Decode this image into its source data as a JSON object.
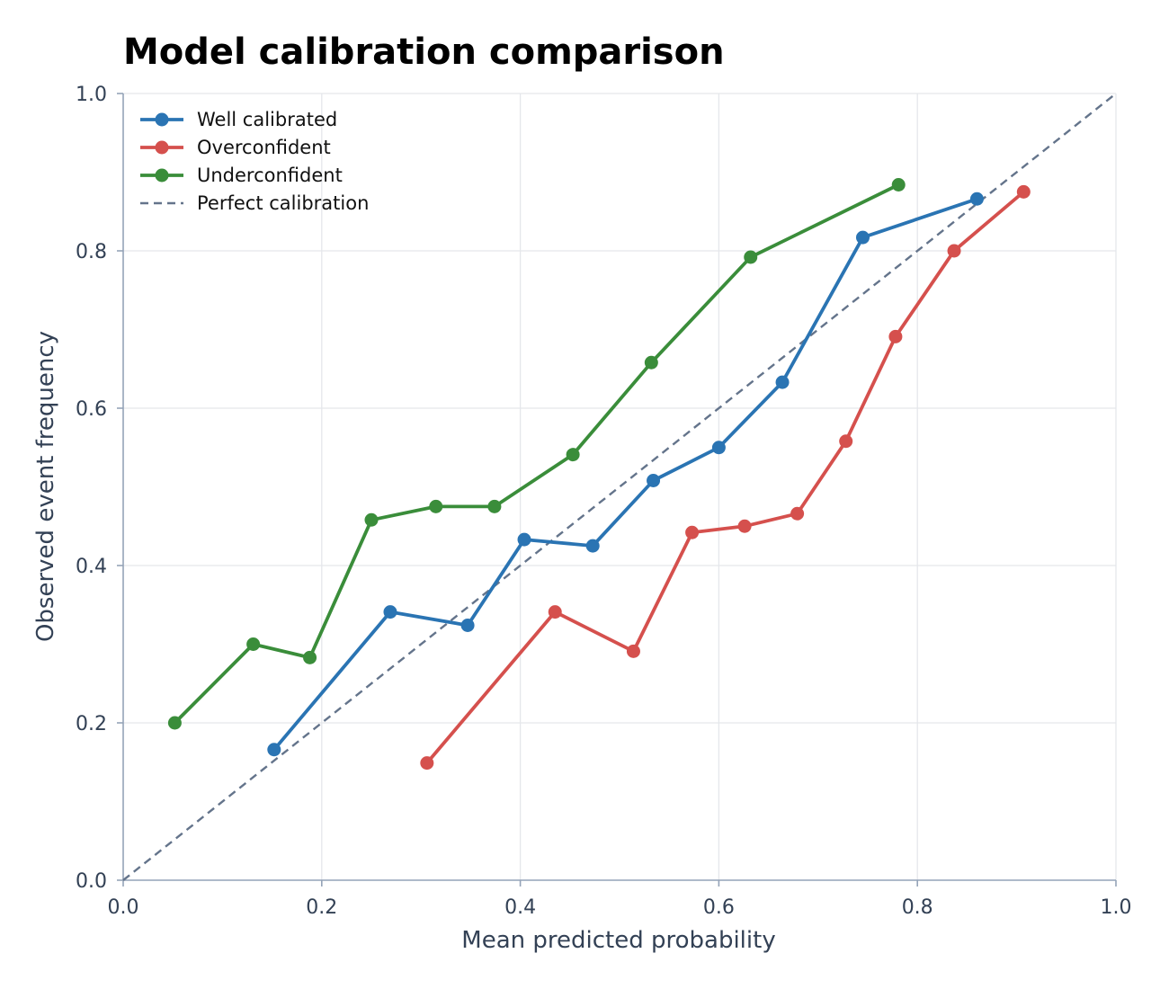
{
  "chart_data": {
    "type": "line",
    "title": "Model calibration comparison",
    "xlabel": "Mean predicted probability",
    "ylabel": "Observed event frequency",
    "xlim": [
      0,
      1
    ],
    "ylim": [
      0,
      1
    ],
    "xticks": [
      "0.0",
      "0.2",
      "0.4",
      "0.6",
      "0.8",
      "1.0"
    ],
    "yticks": [
      "0.0",
      "0.2",
      "0.4",
      "0.6",
      "0.8",
      "1.0"
    ],
    "grid": true,
    "legend_position": "top-left",
    "series": [
      {
        "name": "Well calibrated",
        "color": "#2a74b3",
        "marker": "circle",
        "x": [
          0.152,
          0.269,
          0.347,
          0.404,
          0.473,
          0.534,
          0.6,
          0.664,
          0.745,
          0.86
        ],
        "y": [
          0.166,
          0.341,
          0.324,
          0.433,
          0.425,
          0.508,
          0.55,
          0.633,
          0.817,
          0.866
        ]
      },
      {
        "name": "Overconfident",
        "color": "#d5504d",
        "marker": "circle",
        "x": [
          0.306,
          0.435,
          0.514,
          0.573,
          0.626,
          0.679,
          0.728,
          0.778,
          0.837,
          0.907
        ],
        "y": [
          0.149,
          0.341,
          0.291,
          0.442,
          0.45,
          0.466,
          0.558,
          0.691,
          0.8,
          0.875
        ]
      },
      {
        "name": "Underconfident",
        "color": "#3a8d3a",
        "marker": "circle",
        "x": [
          0.052,
          0.131,
          0.188,
          0.25,
          0.315,
          0.374,
          0.453,
          0.532,
          0.632,
          0.781
        ],
        "y": [
          0.2,
          0.3,
          0.283,
          0.458,
          0.475,
          0.475,
          0.541,
          0.658,
          0.792,
          0.884
        ]
      },
      {
        "name": "Perfect calibration",
        "color": "#64748b",
        "style": "dashed",
        "x": [
          0,
          1
        ],
        "y": [
          0,
          1
        ]
      }
    ]
  }
}
